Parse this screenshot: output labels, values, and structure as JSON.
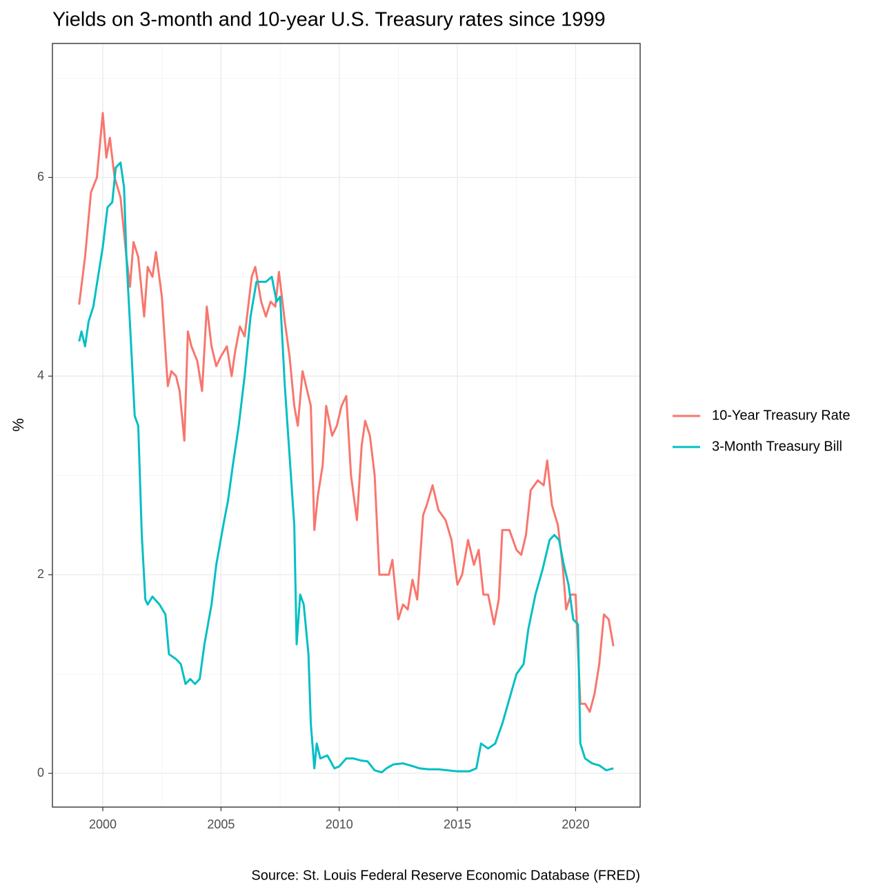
{
  "chart_data": {
    "type": "line",
    "title": "Yields on 3-month and 10-year U.S. Treasury rates since 1999",
    "y_label": "%",
    "caption": "Source: St. Louis Federal Reserve Economic Database (FRED)",
    "xlim": [
      1997.87,
      2022.73
    ],
    "xticks": [
      2000,
      2005,
      2010,
      2015,
      2020
    ],
    "xminor": [
      1997.5,
      2002.5,
      2007.5,
      2012.5,
      2017.5,
      2022.5
    ],
    "ylim": [
      -0.34,
      7.35
    ],
    "yticks": [
      0,
      2,
      4,
      6
    ],
    "yminor": [
      1,
      3,
      5,
      7
    ],
    "grid": true,
    "legend": "right",
    "series": [
      {
        "name": "10-Year Treasury Rate",
        "color": "#F8766D",
        "x": [
          1999.0,
          1999.25,
          1999.5,
          1999.75,
          2000.0,
          2000.15,
          2000.3,
          2000.5,
          2000.75,
          2001.0,
          2001.15,
          2001.3,
          2001.5,
          2001.75,
          2001.9,
          2002.1,
          2002.25,
          2002.5,
          2002.75,
          2002.9,
          2003.1,
          2003.25,
          2003.45,
          2003.6,
          2003.75,
          2004.0,
          2004.2,
          2004.4,
          2004.6,
          2004.8,
          2005.0,
          2005.25,
          2005.45,
          2005.6,
          2005.8,
          2006.0,
          2006.3,
          2006.45,
          2006.7,
          2006.9,
          2007.1,
          2007.3,
          2007.45,
          2007.7,
          2007.9,
          2008.1,
          2008.25,
          2008.45,
          2008.65,
          2008.8,
          2008.95,
          2009.1,
          2009.3,
          2009.45,
          2009.7,
          2009.9,
          2010.1,
          2010.3,
          2010.5,
          2010.75,
          2010.95,
          2011.1,
          2011.3,
          2011.5,
          2011.7,
          2011.9,
          2012.1,
          2012.25,
          2012.5,
          2012.7,
          2012.9,
          2013.1,
          2013.3,
          2013.55,
          2013.7,
          2013.95,
          2014.2,
          2014.5,
          2014.75,
          2015.0,
          2015.2,
          2015.45,
          2015.7,
          2015.9,
          2016.1,
          2016.3,
          2016.55,
          2016.75,
          2016.9,
          2017.2,
          2017.5,
          2017.7,
          2017.9,
          2018.1,
          2018.4,
          2018.65,
          2018.8,
          2019.0,
          2019.25,
          2019.45,
          2019.6,
          2019.8,
          2020.0,
          2020.2,
          2020.4,
          2020.6,
          2020.8,
          2021.0,
          2021.2,
          2021.4,
          2021.6
        ],
        "values": [
          4.72,
          5.2,
          5.85,
          6.0,
          6.65,
          6.2,
          6.4,
          6.0,
          5.8,
          5.2,
          4.9,
          5.35,
          5.2,
          4.6,
          5.1,
          5.0,
          5.25,
          4.8,
          3.9,
          4.05,
          4.0,
          3.85,
          3.35,
          4.45,
          4.3,
          4.15,
          3.85,
          4.7,
          4.3,
          4.1,
          4.2,
          4.3,
          4.0,
          4.25,
          4.5,
          4.4,
          5.0,
          5.1,
          4.75,
          4.6,
          4.75,
          4.7,
          5.05,
          4.55,
          4.2,
          3.7,
          3.5,
          4.05,
          3.85,
          3.7,
          2.45,
          2.8,
          3.1,
          3.7,
          3.4,
          3.5,
          3.7,
          3.8,
          3.0,
          2.55,
          3.3,
          3.55,
          3.4,
          3.0,
          2.0,
          2.0,
          2.0,
          2.15,
          1.55,
          1.7,
          1.65,
          1.95,
          1.75,
          2.6,
          2.7,
          2.9,
          2.65,
          2.55,
          2.35,
          1.9,
          2.0,
          2.35,
          2.1,
          2.25,
          1.8,
          1.8,
          1.5,
          1.75,
          2.45,
          2.45,
          2.25,
          2.2,
          2.4,
          2.85,
          2.95,
          2.9,
          3.15,
          2.7,
          2.5,
          2.1,
          1.65,
          1.8,
          1.8,
          0.7,
          0.7,
          0.62,
          0.8,
          1.1,
          1.6,
          1.55,
          1.28
        ]
      },
      {
        "name": "3-Month Treasury Bill",
        "color": "#00BFC4",
        "x": [
          1999.0,
          1999.1,
          1999.25,
          1999.4,
          1999.6,
          1999.8,
          2000.0,
          2000.2,
          2000.4,
          2000.55,
          2000.75,
          2000.9,
          2001.0,
          2001.2,
          2001.35,
          2001.5,
          2001.65,
          2001.8,
          2001.9,
          2002.1,
          2002.4,
          2002.65,
          2002.8,
          2003.1,
          2003.3,
          2003.5,
          2003.7,
          2003.9,
          2004.1,
          2004.3,
          2004.6,
          2004.8,
          2005.1,
          2005.3,
          2005.5,
          2005.75,
          2006.0,
          2006.25,
          2006.5,
          2006.7,
          2006.9,
          2007.15,
          2007.35,
          2007.5,
          2007.7,
          2007.9,
          2008.1,
          2008.2,
          2008.35,
          2008.5,
          2008.7,
          2008.8,
          2008.95,
          2009.05,
          2009.2,
          2009.5,
          2009.8,
          2010.0,
          2010.3,
          2010.6,
          2010.9,
          2011.2,
          2011.5,
          2011.8,
          2012.0,
          2012.3,
          2012.7,
          2013.0,
          2013.4,
          2013.8,
          2014.2,
          2014.6,
          2015.0,
          2015.5,
          2015.8,
          2016.0,
          2016.3,
          2016.6,
          2016.9,
          2017.2,
          2017.5,
          2017.8,
          2018.0,
          2018.3,
          2018.6,
          2018.9,
          2019.1,
          2019.3,
          2019.5,
          2019.7,
          2019.9,
          2020.1,
          2020.2,
          2020.4,
          2020.7,
          2021.0,
          2021.3,
          2021.6
        ],
        "values": [
          4.35,
          4.45,
          4.3,
          4.55,
          4.7,
          5.0,
          5.3,
          5.7,
          5.75,
          6.1,
          6.15,
          5.9,
          5.2,
          4.3,
          3.6,
          3.5,
          2.4,
          1.75,
          1.7,
          1.78,
          1.7,
          1.6,
          1.2,
          1.15,
          1.1,
          0.9,
          0.95,
          0.9,
          0.95,
          1.3,
          1.7,
          2.1,
          2.5,
          2.75,
          3.1,
          3.5,
          4.0,
          4.6,
          4.95,
          4.95,
          4.95,
          5.0,
          4.75,
          4.8,
          3.9,
          3.2,
          2.5,
          1.3,
          1.8,
          1.7,
          1.2,
          0.5,
          0.05,
          0.3,
          0.15,
          0.18,
          0.05,
          0.07,
          0.15,
          0.15,
          0.13,
          0.12,
          0.03,
          0.01,
          0.05,
          0.09,
          0.1,
          0.08,
          0.05,
          0.04,
          0.04,
          0.03,
          0.02,
          0.02,
          0.05,
          0.3,
          0.25,
          0.3,
          0.5,
          0.75,
          1.0,
          1.1,
          1.45,
          1.8,
          2.05,
          2.35,
          2.4,
          2.35,
          2.1,
          1.9,
          1.55,
          1.5,
          0.3,
          0.15,
          0.1,
          0.08,
          0.03,
          0.05
        ]
      }
    ]
  }
}
